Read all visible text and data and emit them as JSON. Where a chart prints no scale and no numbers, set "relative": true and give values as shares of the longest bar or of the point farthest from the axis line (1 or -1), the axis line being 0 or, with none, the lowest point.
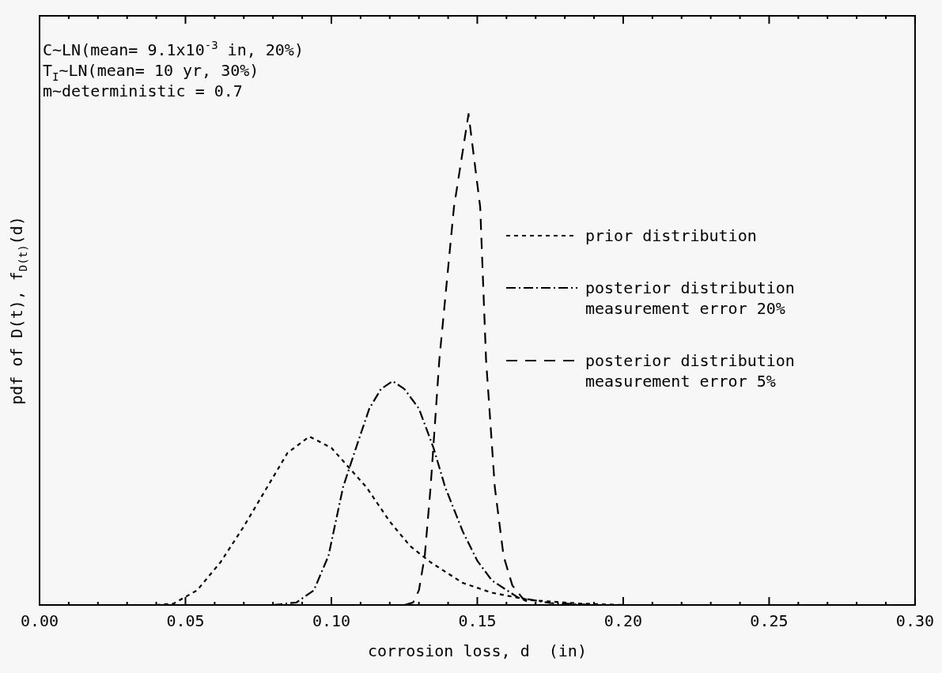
{
  "chart_data": {
    "type": "line",
    "relative": true,
    "xlabel": "corrosion loss, d  (in)",
    "ylabel": "pdf of D(t), f$_{D(t)}$(d)",
    "xlim": [
      0,
      0.3
    ],
    "xticks": [
      {
        "value": 0,
        "label": "0.00"
      },
      {
        "value": 0.05,
        "label": "0.05"
      },
      {
        "value": 0.1,
        "label": "0.10"
      },
      {
        "value": 0.15,
        "label": "0.15"
      },
      {
        "value": 0.2,
        "label": "0.20"
      },
      {
        "value": 0.25,
        "label": "0.25"
      },
      {
        "value": 0.3,
        "label": "0.30"
      }
    ],
    "grid": false,
    "legend": "right",
    "marker": "none",
    "annotations": [
      "C~LN(mean= 9.1x10$^{-3}$ in, 20%)",
      "T$_{I}$~LN(mean= 10 yr, 30%)",
      "m~deterministic = 0.7"
    ],
    "series": [
      {
        "name": "prior distribution",
        "color": "#000000",
        "line_style": "dotted",
        "x": [
          0.04,
          0.046,
          0.054,
          0.062,
          0.07,
          0.078,
          0.085,
          0.0925,
          0.1,
          0.106,
          0.112,
          0.12,
          0.127,
          0.134,
          0.145,
          0.155,
          0.168,
          0.185,
          0.2,
          0.3
        ],
        "values": [
          0,
          0.003,
          0.03,
          0.087,
          0.16,
          0.24,
          0.31,
          0.343,
          0.32,
          0.28,
          0.24,
          0.17,
          0.12,
          0.087,
          0.045,
          0.025,
          0.01,
          0.003,
          0,
          0
        ]
      },
      {
        "name": "posterior distribution\nmeasurement error 20%",
        "color": "#000000",
        "line_style": "dashdot",
        "x": [
          0.08,
          0.088,
          0.094,
          0.099,
          0.104,
          0.109,
          0.113,
          0.117,
          0.121,
          0.125,
          0.13,
          0.135,
          0.139,
          0.145,
          0.15,
          0.155,
          0.164,
          0.175,
          0.19,
          0.3
        ],
        "values": [
          0,
          0.005,
          0.03,
          0.1,
          0.24,
          0.33,
          0.4,
          0.44,
          0.456,
          0.44,
          0.4,
          0.32,
          0.24,
          0.15,
          0.09,
          0.05,
          0.015,
          0.004,
          0,
          0
        ]
      },
      {
        "name": "posterior distribution\nmeasurement error 5%",
        "color": "#000000",
        "line_style": "dashed",
        "x": [
          0.125,
          0.128,
          0.13,
          0.132,
          0.134,
          0.137,
          0.142,
          0.147,
          0.151,
          0.153,
          0.156,
          0.159,
          0.162,
          0.166,
          0.17,
          0.3
        ],
        "values": [
          0,
          0.005,
          0.03,
          0.1,
          0.24,
          0.5,
          0.81,
          1,
          0.81,
          0.5,
          0.24,
          0.1,
          0.04,
          0.01,
          0,
          0
        ]
      }
    ]
  }
}
